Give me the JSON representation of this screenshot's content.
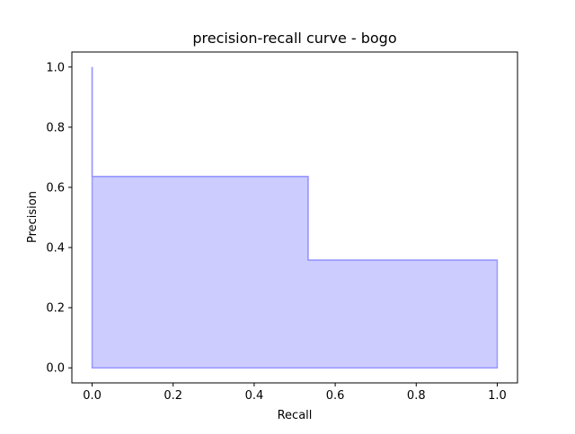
{
  "chart_data": {
    "type": "area",
    "title": "precision-recall curve - bogo",
    "xlabel": "Recall",
    "ylabel": "Precision",
    "xlim": [
      -0.05,
      1.05
    ],
    "ylim": [
      -0.05,
      1.05
    ],
    "xticks": [
      0.0,
      0.2,
      0.4,
      0.6,
      0.8,
      1.0
    ],
    "xtick_labels": [
      "0.0",
      "0.2",
      "0.4",
      "0.6",
      "0.8",
      "1.0"
    ],
    "yticks": [
      0.0,
      0.2,
      0.4,
      0.6,
      0.8,
      1.0
    ],
    "ytick_labels": [
      "0.0",
      "0.2",
      "0.4",
      "0.6",
      "0.8",
      "1.0"
    ],
    "grid": false,
    "step": "post",
    "series": [
      {
        "recall": [
          0.0,
          0.0,
          0.533,
          0.533,
          1.0
        ],
        "precision": [
          1.0,
          0.636,
          0.636,
          0.358,
          0.358
        ]
      }
    ],
    "colors": {
      "fill": "#ccccff",
      "line": "#9999ff",
      "axis": "#000000",
      "background": "#ffffff"
    }
  }
}
